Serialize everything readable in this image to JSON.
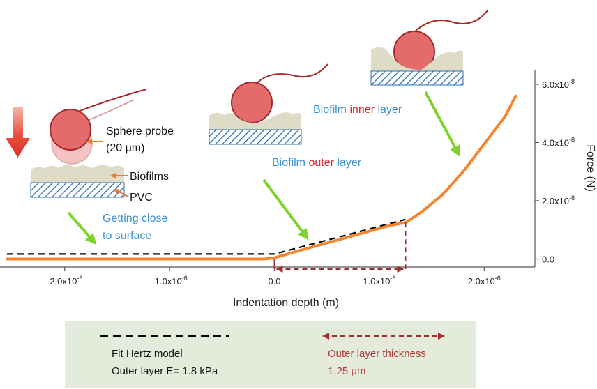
{
  "colors": {
    "curve": "#F5852E",
    "fit_line": "#000000",
    "thickness_arrow": "#A52A2A",
    "green_arrow": "#7ED32F",
    "blue_text": "#3B8FD4",
    "red_text": "#E0202A",
    "dark_red_text": "#B03A3A",
    "probe_fill": "#E36B6B",
    "probe_stroke": "#A42A2A",
    "biofilm": "#DEDBC6",
    "substrate_hatch": "#2F6FB5",
    "legend_bg": "#E4EBDB"
  },
  "annotations": {
    "sphere_probe": "Sphere probe",
    "sphere_size": "(20 μm)",
    "biofilms": "Biofilms",
    "pvc": "PVC",
    "close_line1": "Getting close",
    "close_line2": "to surface",
    "outer_prefix": "Biofilm ",
    "outer_word": "outer",
    "outer_suffix": " layer",
    "inner_prefix": "Biofilm ",
    "inner_word": "inner",
    "inner_suffix": " layer"
  },
  "legend": {
    "fit_line1": "Fit Hertz model",
    "fit_line2": "Outer layer E= 1.8 kPa",
    "thick_line1": "Outer layer thickness",
    "thick_line2": "1.25 μm"
  },
  "chart_data": {
    "type": "line",
    "xlabel": "Indentation depth (m)",
    "ylabel": "Force (N)",
    "xlim": [
      -2.55e-06,
      2.55e-06
    ],
    "ylim": [
      -3e-09,
      6.5e-08
    ],
    "x_ticks": [
      {
        "value": -2e-06,
        "mant": "-2.0x10",
        "exp": "-6"
      },
      {
        "value": -1e-06,
        "mant": "-1.0x10",
        "exp": "-6"
      },
      {
        "value": 0.0,
        "mant": "0.0",
        "exp": ""
      },
      {
        "value": 1e-06,
        "mant": "1.0x10",
        "exp": "-6"
      },
      {
        "value": 2e-06,
        "mant": "2.0x10",
        "exp": "-6"
      }
    ],
    "y_ticks": [
      {
        "value": 0.0,
        "mant": "0.0",
        "exp": ""
      },
      {
        "value": 2e-08,
        "mant": "2.0x10",
        "exp": "-8"
      },
      {
        "value": 4e-08,
        "mant": "4.0x10",
        "exp": "-8"
      },
      {
        "value": 6e-08,
        "mant": "6.0x10",
        "exp": "-8"
      }
    ],
    "series": [
      {
        "kind": "measured",
        "x": [
          -2.55e-06,
          -2e-06,
          -1e-06,
          -1e-07,
          0.0,
          2e-07,
          5e-07,
          8e-07,
          1.1e-06,
          1.25e-06,
          1.4e-06,
          1.6e-06,
          1.8e-06,
          2e-06,
          2.2e-06,
          2.3e-06
        ],
        "y": [
          0.0,
          0.0,
          0.0,
          0.0,
          4e-10,
          2.5e-09,
          5.5e-09,
          8.5e-09,
          1.15e-08,
          1.25e-08,
          1.6e-08,
          2.2e-08,
          3e-08,
          3.95e-08,
          4.9e-08,
          5.6e-08
        ]
      },
      {
        "kind": "fit",
        "x": [
          -2.55e-06,
          -5e-08,
          0.0,
          1.25e-06
        ],
        "y": [
          1.7e-09,
          1.7e-09,
          1.7e-09,
          1.36e-08
        ]
      }
    ],
    "thickness_marker": {
      "x_start": 0.0,
      "x_end": 1.25e-06
    }
  }
}
